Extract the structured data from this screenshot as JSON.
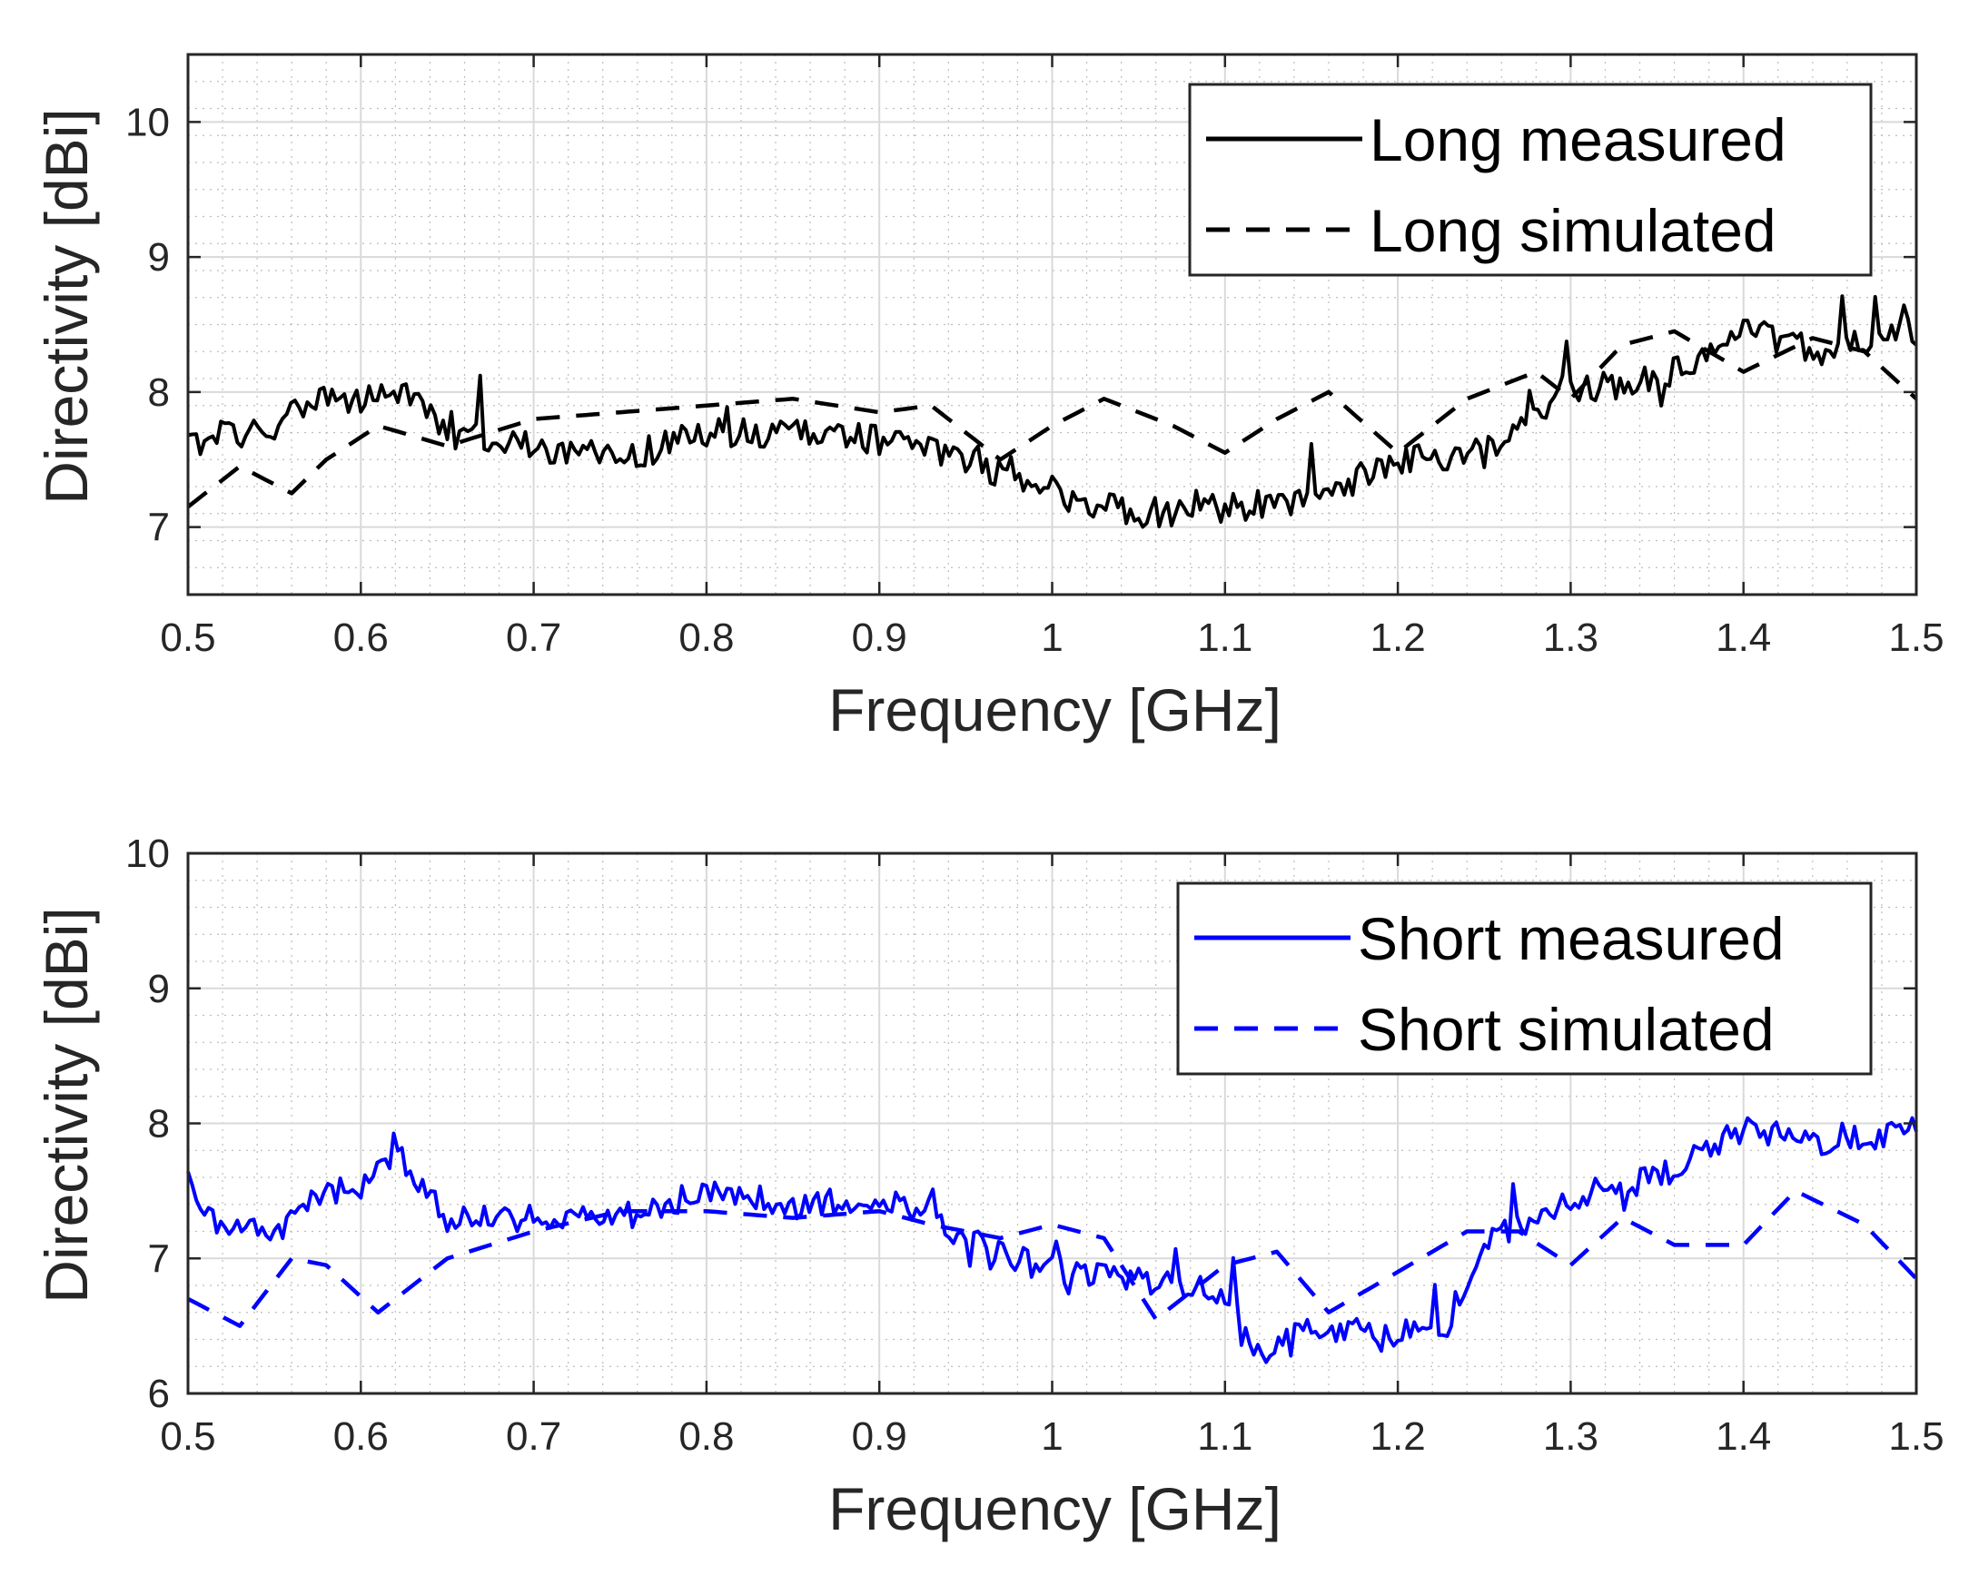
{
  "chart_data": [
    {
      "type": "line",
      "xlabel": "Frequency [GHz]",
      "ylabel": "Directivity [dBi]",
      "xlim": [
        0.5,
        1.5
      ],
      "ylim": [
        6.5,
        10.5
      ],
      "xticks": [
        0.5,
        0.6,
        0.7,
        0.8,
        0.9,
        1,
        1.1,
        1.2,
        1.3,
        1.4,
        1.5
      ],
      "xtick_labels": [
        "0.5",
        "0.6",
        "0.7",
        "0.8",
        "0.9",
        "1",
        "1.1",
        "1.2",
        "1.3",
        "1.4",
        "1.5"
      ],
      "yticks": [
        7,
        8,
        9,
        10
      ],
      "ytick_labels": [
        "7",
        "8",
        "9",
        "10"
      ],
      "grid": true,
      "minor_grid": true,
      "legend_position": "top-right",
      "series": [
        {
          "name": "Long measured",
          "style": "solid",
          "color": "#000000",
          "noise": 0.22,
          "x": [
            0.5,
            0.52,
            0.55,
            0.58,
            0.6,
            0.62,
            0.65,
            0.7,
            0.75,
            0.8,
            0.85,
            0.9,
            0.95,
            1.0,
            1.05,
            1.1,
            1.15,
            1.2,
            1.25,
            1.3,
            1.35,
            1.4,
            1.45,
            1.5
          ],
          "y": [
            7.6,
            7.7,
            7.7,
            8.0,
            7.9,
            8.05,
            7.7,
            7.6,
            7.5,
            7.7,
            7.7,
            7.65,
            7.5,
            7.25,
            7.1,
            7.15,
            7.2,
            7.5,
            7.55,
            8.0,
            8.1,
            8.45,
            8.3,
            8.45
          ]
        },
        {
          "name": "Long simulated",
          "style": "dashed",
          "color": "#000000",
          "x": [
            0.5,
            0.53,
            0.56,
            0.58,
            0.61,
            0.65,
            0.7,
            0.75,
            0.8,
            0.85,
            0.9,
            0.93,
            0.97,
            1.0,
            1.03,
            1.07,
            1.1,
            1.13,
            1.16,
            1.2,
            1.24,
            1.28,
            1.3,
            1.33,
            1.36,
            1.4,
            1.44,
            1.47,
            1.5
          ],
          "y": [
            7.15,
            7.45,
            7.25,
            7.5,
            7.75,
            7.6,
            7.8,
            7.85,
            7.9,
            7.95,
            7.85,
            7.9,
            7.5,
            7.75,
            7.95,
            7.75,
            7.55,
            7.8,
            8.0,
            7.55,
            7.95,
            8.15,
            7.95,
            8.35,
            8.45,
            8.15,
            8.4,
            8.3,
            7.95
          ]
        }
      ]
    },
    {
      "type": "line",
      "xlabel": "Frequency [GHz]",
      "ylabel": "Directivity [dBi]",
      "xlim": [
        0.5,
        1.5
      ],
      "ylim": [
        6,
        10
      ],
      "xticks": [
        0.5,
        0.6,
        0.7,
        0.8,
        0.9,
        1,
        1.1,
        1.2,
        1.3,
        1.4,
        1.5
      ],
      "xtick_labels": [
        "0.5",
        "0.6",
        "0.7",
        "0.8",
        "0.9",
        "1",
        "1.1",
        "1.2",
        "1.3",
        "1.4",
        "1.5"
      ],
      "yticks": [
        6,
        7,
        8,
        9,
        10
      ],
      "ytick_labels": [
        "6",
        "7",
        "8",
        "9",
        "10"
      ],
      "grid": true,
      "minor_grid": true,
      "legend_position": "top-right",
      "series": [
        {
          "name": "Short measured",
          "style": "solid",
          "color": "#0000ff",
          "noise": 0.2,
          "x": [
            0.5,
            0.52,
            0.55,
            0.58,
            0.6,
            0.62,
            0.65,
            0.7,
            0.75,
            0.8,
            0.85,
            0.9,
            0.95,
            1.0,
            1.05,
            1.1,
            1.12,
            1.15,
            1.2,
            1.23,
            1.25,
            1.3,
            1.35,
            1.4,
            1.45,
            1.5
          ],
          "y": [
            7.6,
            7.2,
            7.2,
            7.5,
            7.5,
            7.8,
            7.3,
            7.3,
            7.3,
            7.5,
            7.4,
            7.45,
            7.15,
            6.9,
            6.85,
            6.75,
            6.3,
            6.5,
            6.45,
            6.5,
            7.1,
            7.45,
            7.6,
            7.95,
            7.85,
            7.95
          ]
        },
        {
          "name": "Short simulated",
          "style": "dashed",
          "color": "#0000ff",
          "x": [
            0.5,
            0.53,
            0.56,
            0.58,
            0.61,
            0.65,
            0.7,
            0.75,
            0.8,
            0.85,
            0.9,
            0.93,
            0.97,
            1.0,
            1.03,
            1.06,
            1.1,
            1.13,
            1.16,
            1.2,
            1.24,
            1.27,
            1.3,
            1.33,
            1.36,
            1.4,
            1.43,
            1.47,
            1.5
          ],
          "y": [
            6.7,
            6.5,
            7.0,
            6.95,
            6.6,
            7.0,
            7.2,
            7.35,
            7.35,
            7.3,
            7.35,
            7.25,
            7.15,
            7.25,
            7.15,
            6.55,
            6.95,
            7.05,
            6.6,
            6.9,
            7.2,
            7.2,
            6.95,
            7.3,
            7.1,
            7.1,
            7.5,
            7.25,
            6.85
          ]
        }
      ]
    }
  ]
}
